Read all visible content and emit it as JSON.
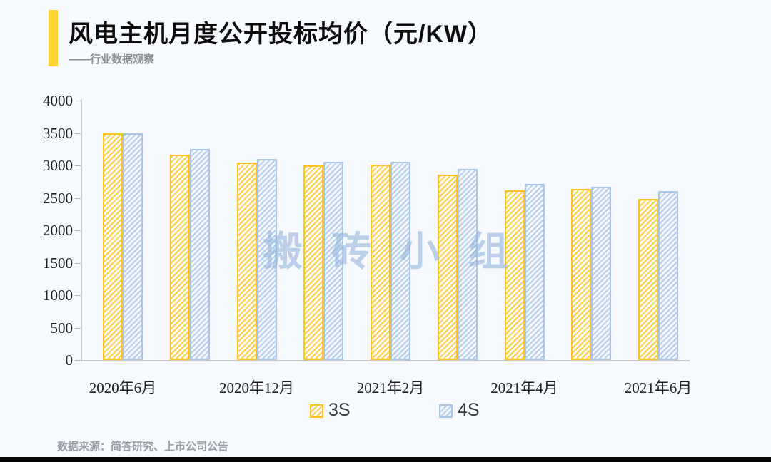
{
  "header": {
    "title": "风电主机月度公开投标均价（元/KW）",
    "subtitle": "——行业数据观察"
  },
  "watermark": {
    "text": "搬砖小组"
  },
  "footer": {
    "source_text": "数据来源：简答研究、上市公司公告"
  },
  "colors": {
    "accent_yellow": "#FFD335",
    "series_3s_border": "#FFC125",
    "series_4s_border": "#A9C7E9",
    "background": "#F6F9FD",
    "watermark": "#94B3DB",
    "bottom_bar": "#050505"
  },
  "chart_data": {
    "type": "bar",
    "title": "风电主机月度公开投标均价（元/KW）",
    "subtitle": "——行业数据观察",
    "categories": [
      "2020年6月",
      "",
      "2020年12月",
      "",
      "2021年2月",
      "",
      "2021年4月",
      "",
      "2021年6月"
    ],
    "series": [
      {
        "name": "3S",
        "color": "#FFC125",
        "hatch": "diagonal",
        "values": [
          3500,
          3160,
          3040,
          3000,
          3010,
          2860,
          2610,
          2640,
          2480
        ]
      },
      {
        "name": "4S",
        "color": "#A9C7E9",
        "hatch": "diagonal",
        "values": [
          3500,
          3250,
          3100,
          3050,
          3060,
          2940,
          2710,
          2670,
          2600
        ]
      }
    ],
    "ylim": [
      0,
      4000
    ],
    "ytick_step": 500,
    "y_ticks": [
      "4000",
      "3500",
      "3000",
      "2500",
      "2000",
      "1500",
      "1000",
      "500",
      "0"
    ],
    "xlabel": "",
    "ylabel": "",
    "grid": false,
    "legend_position": "bottom"
  }
}
